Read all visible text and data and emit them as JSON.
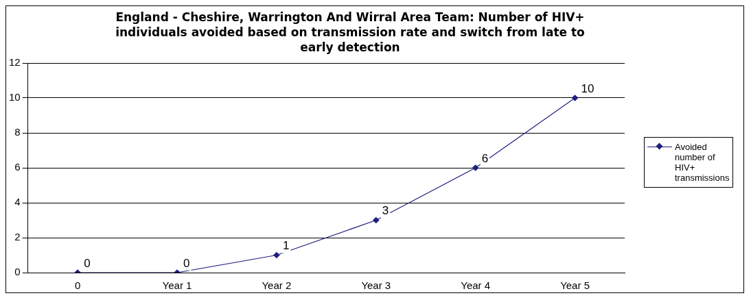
{
  "chart_data": {
    "type": "line",
    "title": "England - Cheshire, Warrington And Wirral Area Team: Number of HIV+ individuals avoided based on transmission rate and switch from late to early detection",
    "categories": [
      "0",
      "Year 1",
      "Year 2",
      "Year 3",
      "Year 4",
      "Year 5"
    ],
    "series": [
      {
        "name": "Avoided number of HIV+ transmissions",
        "color": "#1f1f7f",
        "values": [
          0,
          0,
          1,
          3,
          6,
          10
        ]
      }
    ],
    "ylim": [
      0,
      12
    ],
    "yticks": [
      0,
      2,
      4,
      6,
      8,
      10,
      12
    ],
    "grid": "y",
    "legend": "right",
    "marker": "diamond",
    "data_labels": true
  }
}
